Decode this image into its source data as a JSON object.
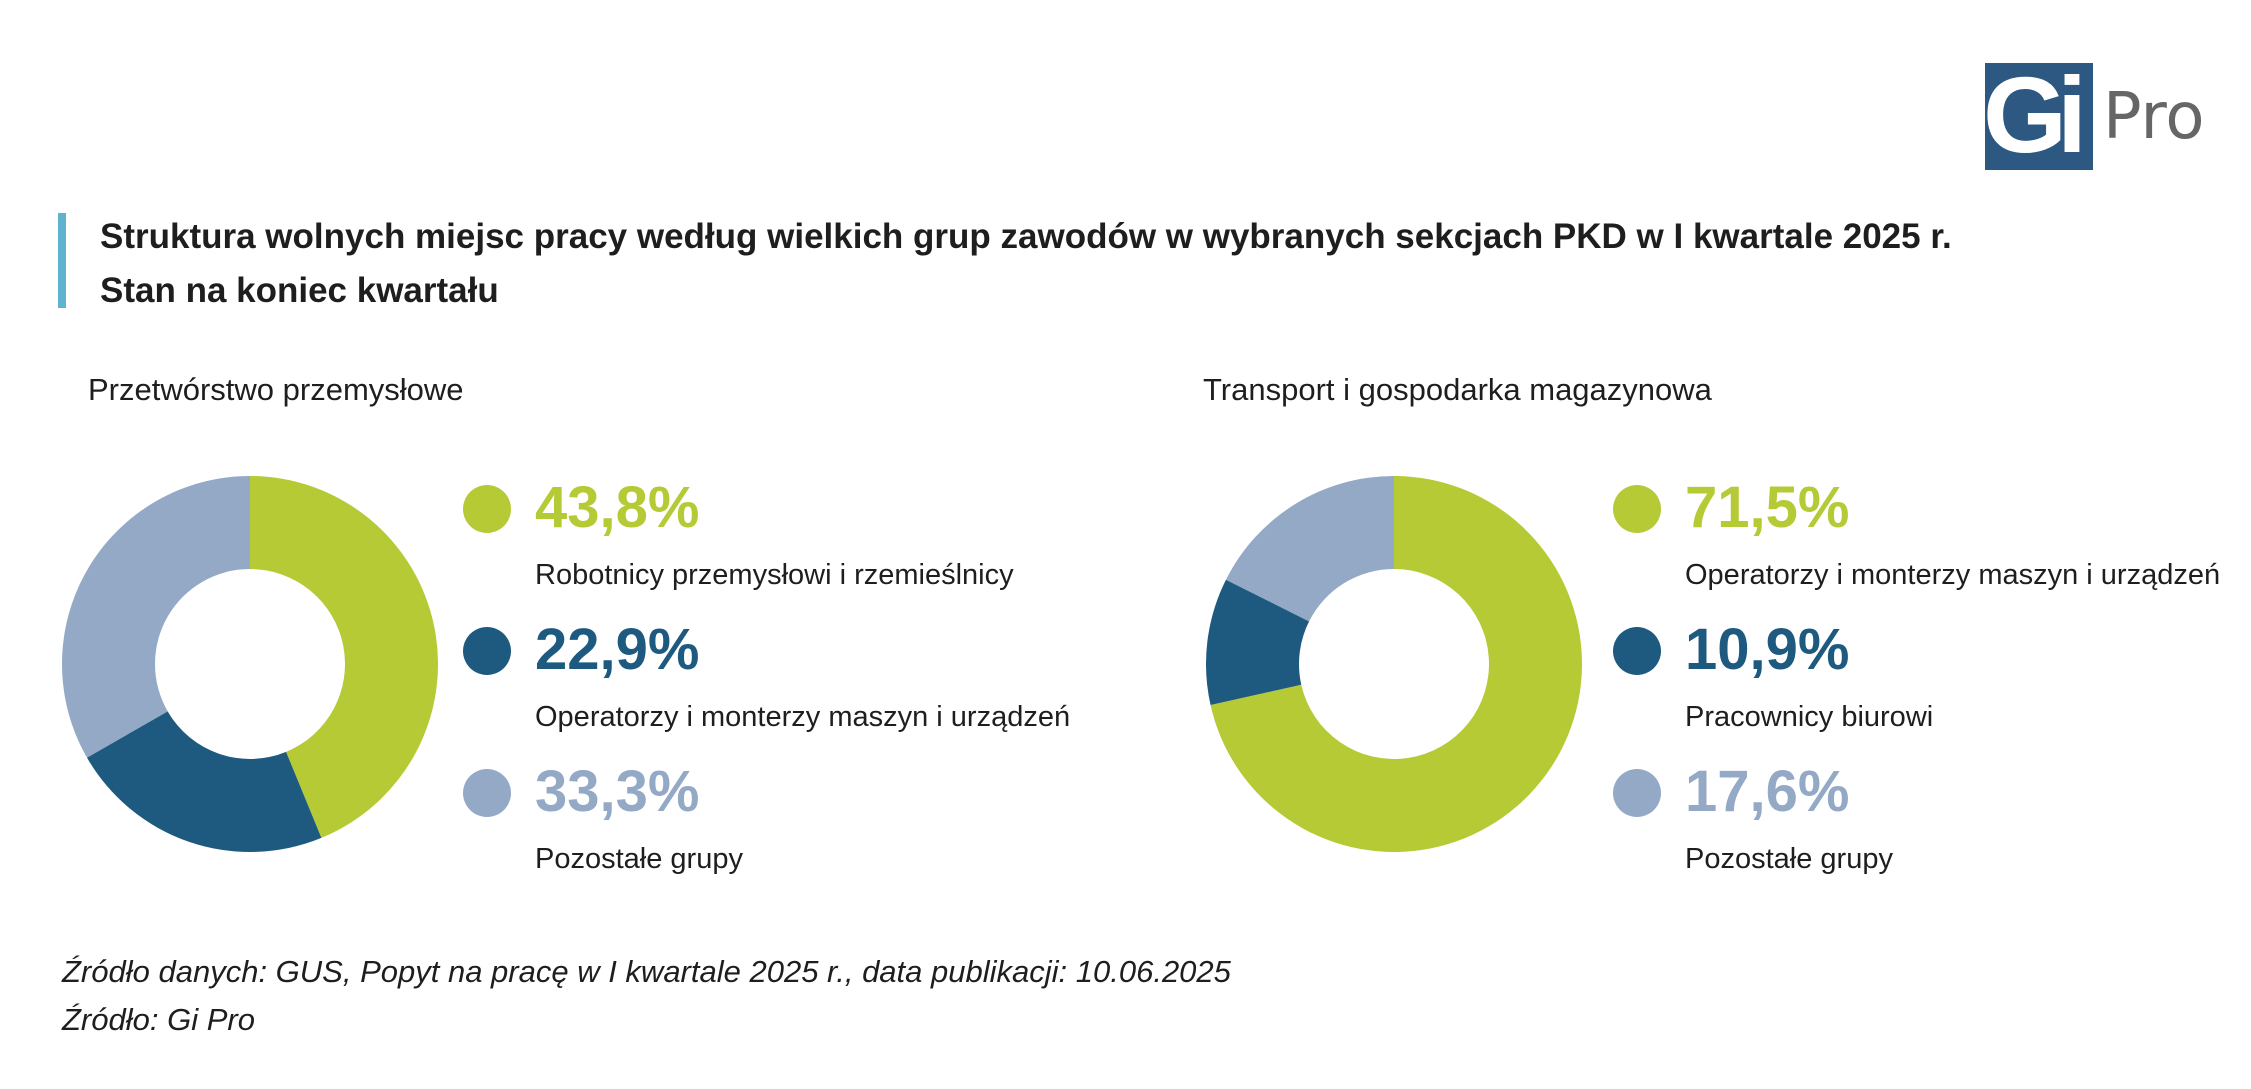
{
  "logo": {
    "text": "Gi",
    "suffix": "Pro"
  },
  "title": {
    "line1": "Struktura wolnych miejsc pracy według wielkich grup zawodów w wybranych sekcjach PKD w I kwartale 2025 r.",
    "line2": "Stan na koniec kwartału"
  },
  "chart_data": [
    {
      "type": "pie",
      "title": "Przetwórstwo przemysłowe",
      "slices": [
        {
          "label": "Robotnicy przemysłowi i rzemieślnicy",
          "value": 43.8,
          "value_label": "43,8%",
          "color": "#b5ca35"
        },
        {
          "label": "Operatorzy i monterzy maszyn i urządzeń",
          "value": 22.9,
          "value_label": "22,9%",
          "color": "#1e5a80"
        },
        {
          "label": "Pozostałe grupy",
          "value": 33.3,
          "value_label": "33,3%",
          "color": "#93a9c5"
        }
      ]
    },
    {
      "type": "pie",
      "title": "Transport i gospodarka magazynowa",
      "slices": [
        {
          "label": "Operatorzy i monterzy maszyn i urządzeń",
          "value": 71.5,
          "value_label": "71,5%",
          "color": "#b5ca35"
        },
        {
          "label": "Pracownicy biurowi",
          "value": 10.9,
          "value_label": "10,9%",
          "color": "#1e5a80"
        },
        {
          "label": "Pozostałe grupy",
          "value": 17.6,
          "value_label": "17,6%",
          "color": "#93a9c5"
        }
      ]
    }
  ],
  "sources": [
    "Źródło danych: GUS, Popyt na pracę w I kwartale 2025 r., data publikacji:  10.06.2025",
    "Źródło: Gi Pro"
  ]
}
